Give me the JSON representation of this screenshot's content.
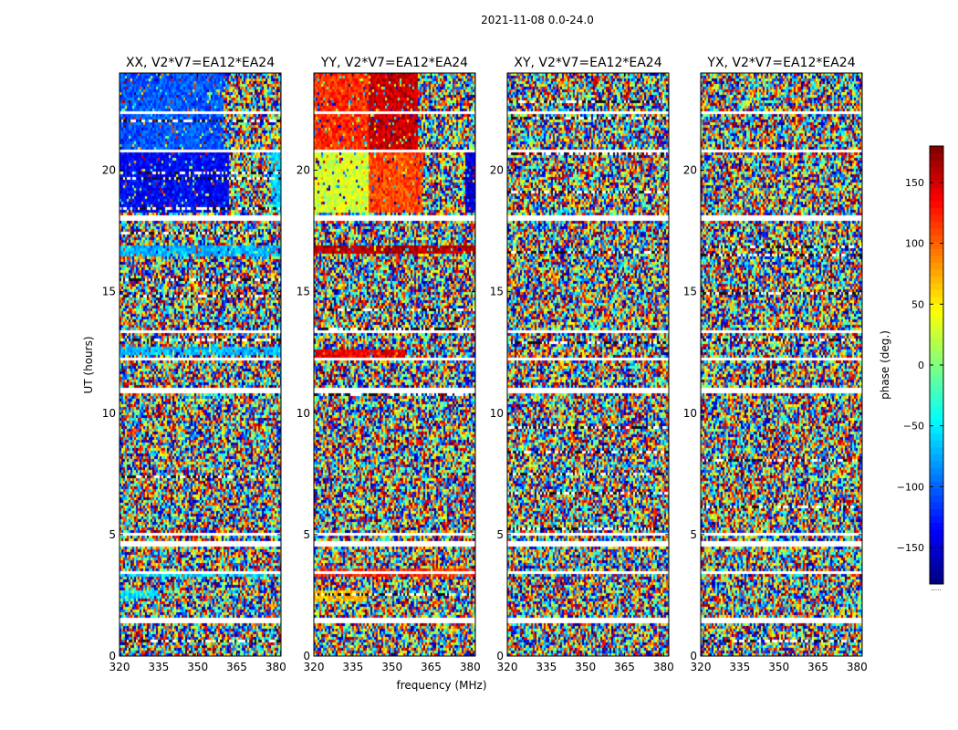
{
  "suptitle": "2021-11-08 0.0-24.0",
  "chart_data": {
    "type": "heatmap",
    "xlabel": "frequency (MHz)",
    "ylabel": "UT (hours)",
    "xlim": [
      320,
      382
    ],
    "ylim": [
      0,
      24
    ],
    "xticks": [
      320,
      335,
      350,
      365,
      380
    ],
    "yticks": [
      0,
      5,
      10,
      15,
      20
    ],
    "colorbar": {
      "label": "phase (deg.)",
      "range": [
        -180,
        180
      ],
      "ticks": [
        -150,
        -100,
        -50,
        0,
        50,
        100,
        150
      ],
      "tick_labels": [
        "−150",
        "−100",
        "−50",
        "0",
        "50",
        "100",
        "150"
      ],
      "colormap": [
        "#00007f",
        "#0000ff",
        "#007fff",
        "#00ffff",
        "#7fff7f",
        "#ffff00",
        "#ff7f00",
        "#ff0000",
        "#7f0000"
      ],
      "footnote": "....."
    },
    "gaps_hours": [
      [
        1.3,
        1.55
      ],
      [
        3.4,
        3.52
      ],
      [
        4.55,
        4.7
      ],
      [
        5.0,
        5.08
      ],
      [
        7.05,
        7.15
      ],
      [
        8.85,
        8.95
      ],
      [
        10.85,
        11.0
      ],
      [
        12.2,
        12.3
      ],
      [
        13.35,
        13.45
      ],
      [
        17.9,
        18.1
      ],
      [
        20.7,
        20.85
      ],
      [
        22.3,
        22.45
      ]
    ],
    "panels": [
      {
        "title": "XX, V2*V7=EA12*EA24",
        "coherent_regions": [
          {
            "t": [
              18.2,
              20.7
            ],
            "f": [
              320,
              362
            ],
            "phase": -135
          },
          {
            "t": [
              18.2,
              20.7
            ],
            "f": [
              378,
              382
            ],
            "phase": -60
          },
          {
            "t": [
              20.9,
              24
            ],
            "f": [
              320,
              360
            ],
            "phase": -105
          },
          {
            "t": [
              16.5,
              16.9
            ],
            "f": [
              320,
              382
            ],
            "phase": -70
          },
          {
            "t": [
              12.4,
              12.7
            ],
            "f": [
              320,
              382
            ],
            "phase": -70
          },
          {
            "t": [
              3.3,
              3.5
            ],
            "f": [
              320,
              382
            ],
            "phase": -60
          },
          {
            "t": [
              2.4,
              2.65
            ],
            "f": [
              320,
              335
            ],
            "phase": -60
          }
        ]
      },
      {
        "title": "YY, V2*V7=EA12*EA24",
        "coherent_regions": [
          {
            "t": [
              18.2,
              20.7
            ],
            "f": [
              320,
              341
            ],
            "phase": 30
          },
          {
            "t": [
              18.2,
              20.7
            ],
            "f": [
              341,
              362
            ],
            "phase": 110
          },
          {
            "t": [
              18.2,
              20.7
            ],
            "f": [
              378,
              382
            ],
            "phase": -150
          },
          {
            "t": [
              20.9,
              24
            ],
            "f": [
              320,
              341
            ],
            "phase": 120
          },
          {
            "t": [
              20.9,
              24
            ],
            "f": [
              341,
              360
            ],
            "phase": 155
          },
          {
            "t": [
              16.6,
              16.9
            ],
            "f": [
              320,
              382
            ],
            "phase": 160
          },
          {
            "t": [
              12.3,
              12.6
            ],
            "f": [
              320,
              355
            ],
            "phase": 140
          },
          {
            "t": [
              3.3,
              3.6
            ],
            "f": [
              320,
              382
            ],
            "phase": 120
          },
          {
            "t": [
              2.3,
              2.7
            ],
            "f": [
              320,
              340
            ],
            "phase": 70
          }
        ]
      },
      {
        "title": "XY, V2*V7=EA12*EA24",
        "coherent_regions": []
      },
      {
        "title": "YX, V2*V7=EA12*EA24",
        "coherent_regions": []
      }
    ]
  }
}
